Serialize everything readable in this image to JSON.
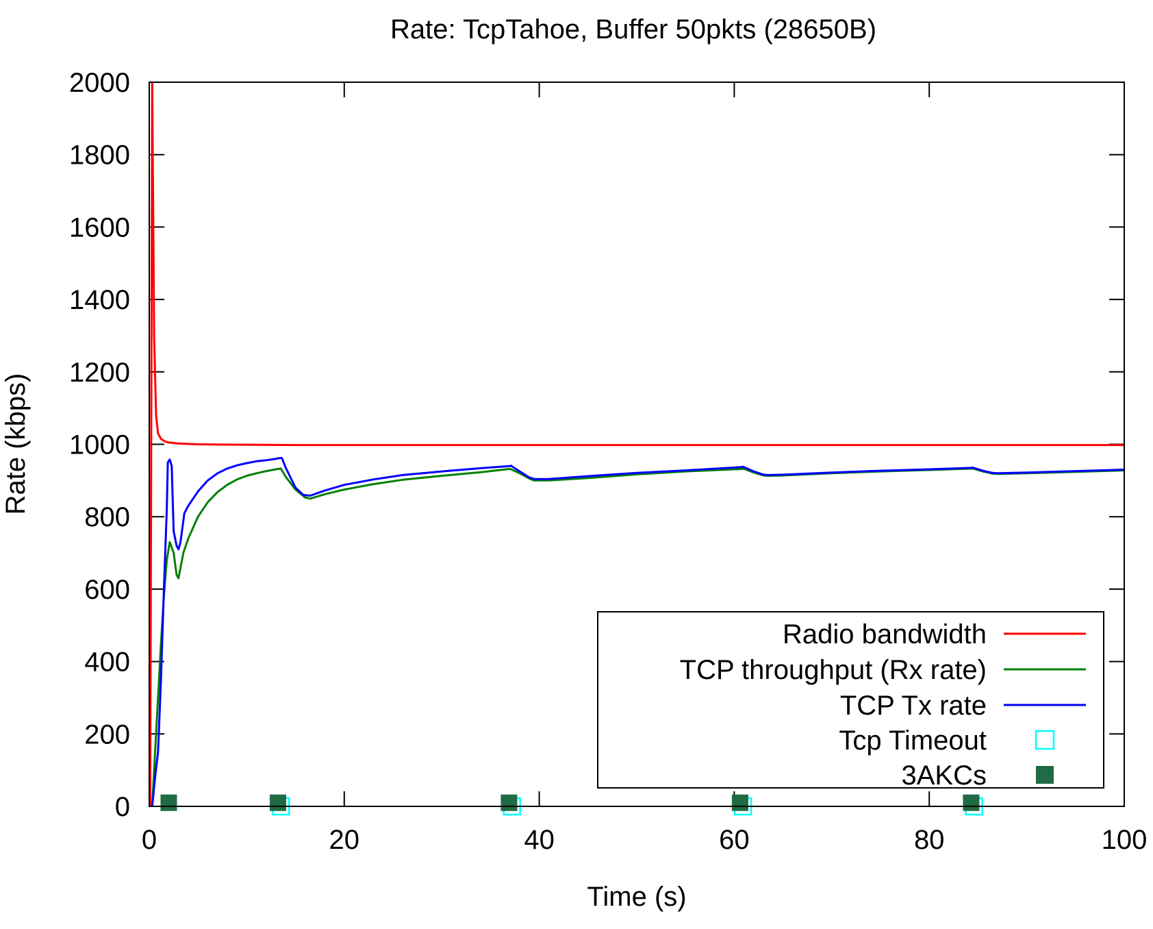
{
  "chart_data": {
    "type": "line",
    "title": "Rate: TcpTahoe, Buffer 50pkts (28650B)",
    "xlabel": "Time (s)",
    "ylabel": "Rate (kbps)",
    "xlim": [
      0,
      100
    ],
    "ylim": [
      0,
      2000
    ],
    "xticks": [
      0,
      20,
      40,
      60,
      80,
      100
    ],
    "yticks": [
      0,
      200,
      400,
      600,
      800,
      1000,
      1200,
      1400,
      1600,
      1800,
      2000
    ],
    "grid": false,
    "legend_position": "bottom-right",
    "series": [
      {
        "name": "Radio bandwidth",
        "kind": "line",
        "color": "#ff0000",
        "x": [
          0.1,
          0.3,
          0.5,
          0.7,
          0.9,
          1.2,
          1.6,
          2.0,
          3.0,
          5.0,
          8.0,
          15.0,
          30.0,
          50.0,
          75.0,
          100.0
        ],
        "y": [
          0,
          2000,
          1300,
          1080,
          1030,
          1015,
          1008,
          1005,
          1002,
          1000,
          999,
          998,
          998,
          998,
          998,
          998
        ]
      },
      {
        "name": "TCP throughput (Rx rate)",
        "kind": "line",
        "color": "#008000",
        "x": [
          0.3,
          0.6,
          0.9,
          1.2,
          1.5,
          1.8,
          2.1,
          2.5,
          2.8,
          3.0,
          3.5,
          4.0,
          5.0,
          6.0,
          7.0,
          8.0,
          9.0,
          10.0,
          11.0,
          12.0,
          13.0,
          13.5,
          14.0,
          15.0,
          16.0,
          16.5,
          18.0,
          20.0,
          23.0,
          26.0,
          30.0,
          34.0,
          37.0,
          38.0,
          39.0,
          39.5,
          41.0,
          45.0,
          50.0,
          55.0,
          61.0,
          62.0,
          63.0,
          63.5,
          65.0,
          70.0,
          75.0,
          80.0,
          84.5,
          85.5,
          86.5,
          87.0,
          90.0,
          95.0,
          100.0
        ],
        "y": [
          0,
          150,
          300,
          450,
          580,
          680,
          730,
          700,
          640,
          630,
          700,
          740,
          800,
          840,
          868,
          888,
          903,
          913,
          920,
          926,
          931,
          933,
          910,
          875,
          853,
          850,
          862,
          875,
          890,
          902,
          913,
          923,
          932,
          920,
          905,
          900,
          900,
          907,
          917,
          925,
          932,
          922,
          914,
          913,
          914,
          920,
          925,
          929,
          933,
          925,
          919,
          918,
          920,
          924,
          928
        ]
      },
      {
        "name": "TCP Tx rate",
        "kind": "line",
        "color": "#0000ff",
        "x": [
          0.3,
          0.6,
          0.9,
          1.2,
          1.5,
          1.8,
          1.9,
          2.1,
          2.3,
          2.5,
          2.8,
          3.0,
          3.2,
          3.6,
          4.0,
          5.0,
          6.0,
          7.0,
          8.0,
          9.0,
          10.0,
          11.0,
          12.0,
          13.0,
          13.4,
          13.6,
          14.0,
          15.0,
          15.8,
          16.5,
          18.0,
          20.0,
          23.0,
          26.0,
          30.0,
          34.0,
          37.0,
          37.1,
          38.0,
          39.0,
          39.5,
          41.0,
          45.0,
          50.0,
          55.0,
          60.8,
          60.9,
          62.0,
          63.0,
          63.5,
          65.0,
          70.0,
          75.0,
          80.0,
          84.3,
          84.4,
          85.5,
          86.5,
          87.0,
          90.0,
          95.0,
          100.0
        ],
        "y": [
          0,
          80,
          150,
          350,
          600,
          820,
          950,
          958,
          940,
          760,
          720,
          710,
          730,
          810,
          830,
          870,
          900,
          920,
          933,
          942,
          948,
          953,
          956,
          960,
          962,
          962,
          935,
          880,
          860,
          858,
          872,
          888,
          903,
          915,
          925,
          934,
          940,
          941,
          925,
          908,
          904,
          904,
          912,
          921,
          928,
          937,
          938,
          925,
          916,
          915,
          916,
          922,
          927,
          931,
          935,
          936,
          927,
          921,
          920,
          922,
          926,
          930
        ]
      },
      {
        "name": "Tcp Timeout",
        "kind": "points",
        "marker": "open-square",
        "color": "#00ffff",
        "x": [
          13.5,
          37.2,
          60.9,
          84.6
        ],
        "y": [
          0,
          0,
          0,
          0
        ]
      },
      {
        "name": "3AKCs",
        "kind": "points",
        "marker": "filled-square",
        "color": "#1f6b44",
        "x": [
          2.0,
          13.2,
          36.9,
          60.6,
          84.3
        ],
        "y": [
          10,
          10,
          10,
          10,
          10
        ]
      }
    ]
  }
}
